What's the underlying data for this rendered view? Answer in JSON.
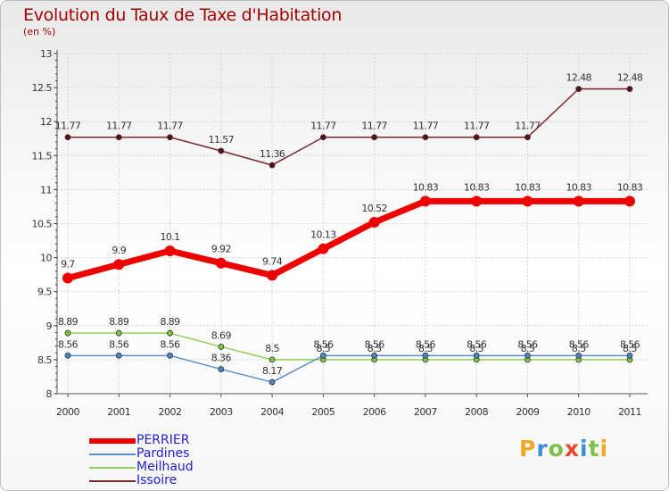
{
  "chart_data": {
    "type": "line",
    "title": "Evolution du Taux de Taxe d'Habitation",
    "subtitle": "(en %)",
    "x": [
      "2000",
      "2001",
      "2002",
      "2003",
      "2004",
      "2005",
      "2006",
      "2007",
      "2008",
      "2009",
      "2010",
      "2011"
    ],
    "ylim": [
      8,
      13
    ],
    "y_ticks": [
      "8",
      "8.5",
      "9",
      "9.5",
      "10",
      "10.5",
      "11",
      "11.5",
      "12",
      "12.5",
      "13"
    ],
    "grid": true,
    "legend_position": "bottom-left",
    "series": [
      {
        "name": "PERRIER",
        "color": "#ee0000",
        "values": [
          9.7,
          9.9,
          10.1,
          9.92,
          9.74,
          10.13,
          10.52,
          10.83,
          10.83,
          10.83,
          10.83,
          10.83
        ],
        "labels": [
          "9.7",
          "9.9",
          "10.1",
          "9.92",
          "9.74",
          "10.13",
          "10.52",
          "10.83",
          "10.83",
          "10.83",
          "10.83",
          "10.83"
        ]
      },
      {
        "name": "Pardines",
        "color": "#5b8fc9",
        "values": [
          8.56,
          8.56,
          8.56,
          8.36,
          8.17,
          8.56,
          8.56,
          8.56,
          8.56,
          8.56,
          8.56,
          8.56
        ],
        "labels": [
          "8.56",
          "8.56",
          "8.56",
          "8.36",
          "8.17",
          "8.56",
          "8.56",
          "8.56",
          "8.56",
          "8.56",
          "8.56",
          "8.56"
        ]
      },
      {
        "name": "Meilhaud",
        "color": "#8fd05a",
        "values": [
          8.89,
          8.89,
          8.89,
          8.69,
          8.5,
          8.5,
          8.5,
          8.5,
          8.5,
          8.5,
          8.5,
          8.5
        ],
        "labels": [
          "8.89",
          "8.89",
          "8.89",
          "8.69",
          "8.5",
          "8.5",
          "8.5",
          "8.5",
          "8.5",
          "8.5",
          "8.5",
          "8.5"
        ]
      },
      {
        "name": "Issoire",
        "color": "#7a2a2a",
        "values": [
          11.77,
          11.77,
          11.77,
          11.57,
          11.36,
          11.77,
          11.77,
          11.77,
          11.77,
          11.77,
          12.48,
          12.48
        ],
        "labels": [
          "11.77",
          "11.77",
          "11.77",
          "11.57",
          "11.36",
          "11.77",
          "11.77",
          "11.77",
          "11.77",
          "11.77",
          "12.48",
          "12.48"
        ]
      }
    ]
  },
  "logo": {
    "letters": [
      "P",
      "r",
      "o",
      "x",
      "i",
      "t",
      "i"
    ],
    "colors": [
      "#f5a623",
      "#3b8fd6",
      "#7cc04a",
      "#e04b2a",
      "#3b8fd6",
      "#7cc04a",
      "#f5a623"
    ]
  }
}
